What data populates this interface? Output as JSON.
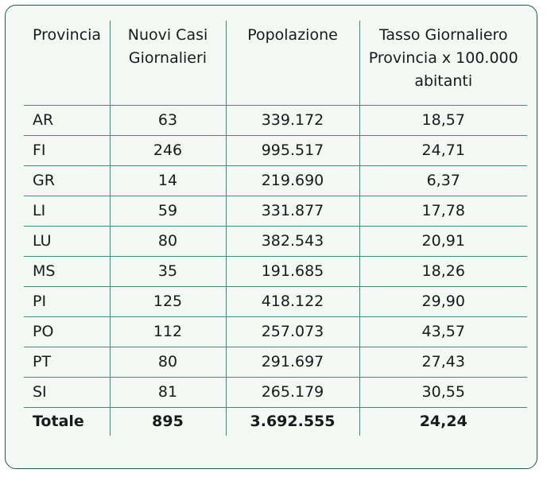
{
  "table": {
    "headers": [
      "Provincia",
      "Nuovi Casi Giornalieri",
      "Popolazione",
      "Tasso Giornaliero Provincia x 100.000 abitanti"
    ],
    "rows": [
      [
        "AR",
        "63",
        "339.172",
        "18,57"
      ],
      [
        "FI",
        "246",
        "995.517",
        "24,71"
      ],
      [
        "GR",
        "14",
        "219.690",
        "6,37"
      ],
      [
        "LI",
        "59",
        "331.877",
        "17,78"
      ],
      [
        "LU",
        "80",
        "382.543",
        "20,91"
      ],
      [
        "MS",
        "35",
        "191.685",
        "18,26"
      ],
      [
        "PI",
        "125",
        "418.122",
        "29,90"
      ],
      [
        "PO",
        "112",
        "257.073",
        "43,57"
      ],
      [
        "PT",
        "80",
        "291.697",
        "27,43"
      ],
      [
        "SI",
        "81",
        "265.179",
        "30,55"
      ]
    ],
    "total": [
      "Totale",
      "895",
      "3.692.555",
      "24,24"
    ]
  }
}
